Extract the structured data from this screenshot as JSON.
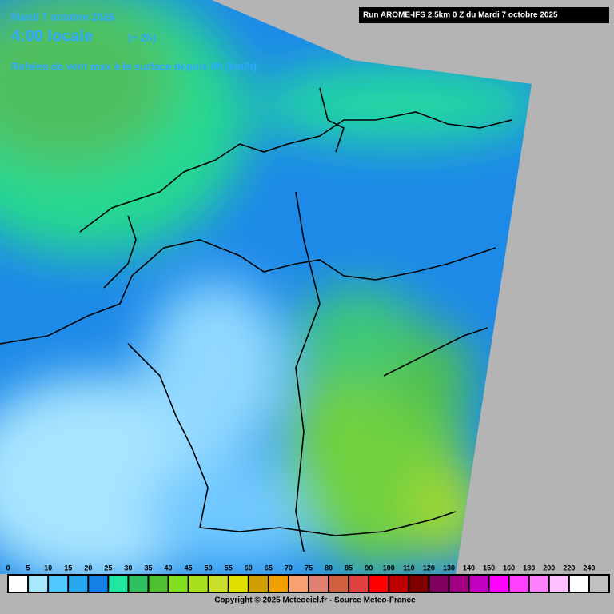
{
  "header": {
    "date": "Mardi 7 octobre 2025",
    "time": "4:00 locale",
    "offset": "(+ 2h)",
    "parameter": "Rafales de vent max à la surface depuis 0h (km/h)",
    "run": "Run AROME-IFS 2.5km 0 Z du Mardi 7 octobre 2025"
  },
  "legend": {
    "items": [
      {
        "label": "0",
        "color": "#ffffff"
      },
      {
        "label": "5",
        "color": "#a8e8ff"
      },
      {
        "label": "10",
        "color": "#50c8ff"
      },
      {
        "label": "15",
        "color": "#28a8f0"
      },
      {
        "label": "20",
        "color": "#1480e6"
      },
      {
        "label": "25",
        "color": "#20e6a0"
      },
      {
        "label": "30",
        "color": "#30c060"
      },
      {
        "label": "35",
        "color": "#50c030"
      },
      {
        "label": "40",
        "color": "#80e020"
      },
      {
        "label": "45",
        "color": "#a8e020"
      },
      {
        "label": "50",
        "color": "#c8e028"
      },
      {
        "label": "55",
        "color": "#e0e000"
      },
      {
        "label": "60",
        "color": "#d0a000"
      },
      {
        "label": "65",
        "color": "#f0a000"
      },
      {
        "label": "70",
        "color": "#f8a070"
      },
      {
        "label": "75",
        "color": "#e08070"
      },
      {
        "label": "80",
        "color": "#d06040"
      },
      {
        "label": "85",
        "color": "#e04040"
      },
      {
        "label": "90",
        "color": "#ff0000"
      },
      {
        "label": "100",
        "color": "#c00000"
      },
      {
        "label": "110",
        "color": "#800000"
      },
      {
        "label": "120",
        "color": "#800060"
      },
      {
        "label": "130",
        "color": "#a00080"
      },
      {
        "label": "140",
        "color": "#c000c0"
      },
      {
        "label": "150",
        "color": "#ff00ff"
      },
      {
        "label": "160",
        "color": "#ff40ff"
      },
      {
        "label": "180",
        "color": "#ff80ff"
      },
      {
        "label": "200",
        "color": "#ffc0ff"
      },
      {
        "label": "220",
        "color": "#ffffff"
      },
      {
        "label": "240",
        "color": "#c0c0c0"
      }
    ]
  },
  "footer": {
    "copyright": "Copyright © 2025 Meteociel.fr - Source Meteo-France"
  }
}
